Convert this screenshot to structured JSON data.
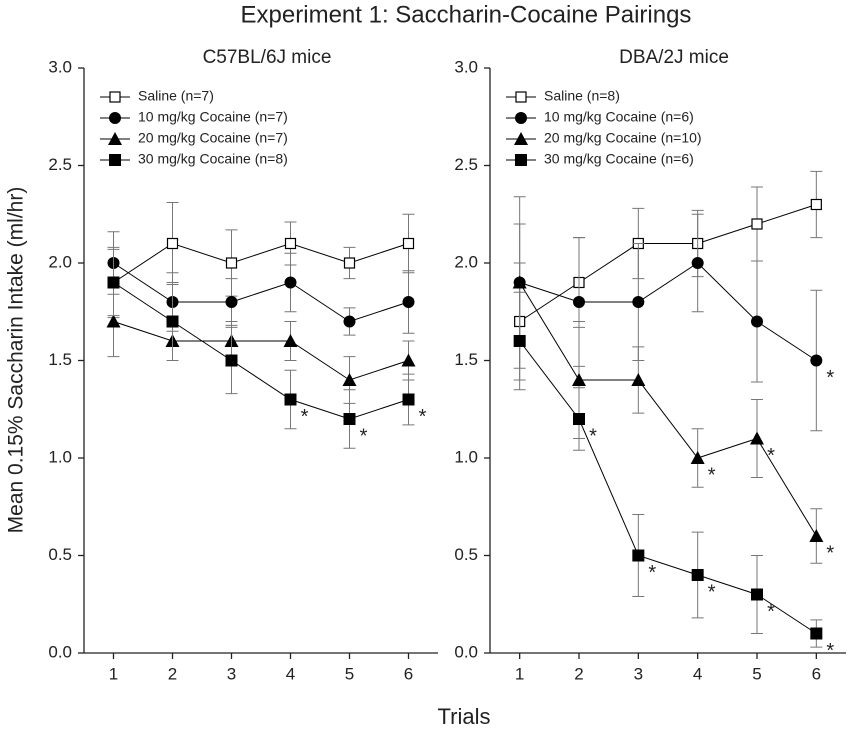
{
  "title": "Experiment 1: Saccharin-Cocaine Pairings",
  "xlabel": "Trials",
  "ylabel": "Mean 0.15% Saccharin Intake (ml/hr)",
  "chart_data": [
    {
      "type": "line",
      "title": "C57BL/6J mice",
      "x": [
        1,
        2,
        3,
        4,
        5,
        6
      ],
      "xlim": [
        0.5,
        6.5
      ],
      "xticks": [
        1,
        2,
        3,
        4,
        5,
        6
      ],
      "ylim": [
        0,
        3
      ],
      "yticks": [
        {
          "value": 0,
          "label": "0.0"
        },
        0.5,
        {
          "value": 1,
          "label": "1.0"
        },
        1.5,
        {
          "value": 2,
          "label": "2.0"
        },
        2.5,
        {
          "value": 3,
          "label": "3.0"
        }
      ],
      "legend": "upper left",
      "series": [
        {
          "name": "Saline (n=7)",
          "color": "#000000",
          "marker": "open-square",
          "values": [
            1.9,
            2.1,
            2.0,
            2.1,
            2.0,
            2.1
          ],
          "errors": [
            0.18,
            0.21,
            0.17,
            0.11,
            0.08,
            0.15
          ],
          "annotations": []
        },
        {
          "name": "10 mg/kg Cocaine (n=7)",
          "color": "#000000",
          "marker": "circle",
          "values": [
            2.0,
            1.8,
            1.8,
            1.9,
            1.7,
            1.8
          ],
          "errors": [
            0.16,
            0.15,
            0.12,
            0.15,
            0.07,
            0.16
          ],
          "annotations": []
        },
        {
          "name": "20 mg/kg Cocaine (n=7)",
          "color": "#000000",
          "marker": "triangle",
          "values": [
            1.7,
            1.6,
            1.6,
            1.6,
            1.4,
            1.5
          ],
          "errors": [
            0.18,
            0.1,
            0.1,
            0.1,
            0.12,
            0.1
          ],
          "annotations": []
        },
        {
          "name": "30 mg/kg Cocaine (n=8)",
          "color": "#000000",
          "marker": "square",
          "values": [
            1.9,
            1.7,
            1.5,
            1.3,
            1.2,
            1.3
          ],
          "errors": [
            0.17,
            0.2,
            0.17,
            0.15,
            0.15,
            0.13
          ],
          "annotations": [
            {
              "x": 4,
              "text": "*"
            },
            {
              "x": 5,
              "text": "*"
            },
            {
              "x": 6,
              "text": "*"
            }
          ]
        }
      ]
    },
    {
      "type": "line",
      "title": "DBA/2J mice",
      "x": [
        1,
        2,
        3,
        4,
        5,
        6
      ],
      "xlim": [
        0.5,
        6.5
      ],
      "xticks": [
        1,
        2,
        3,
        4,
        5,
        6
      ],
      "ylim": [
        0,
        3
      ],
      "yticks": [
        {
          "value": 0,
          "label": "0.0"
        },
        0.5,
        {
          "value": 1,
          "label": "1.0"
        },
        1.5,
        {
          "value": 2,
          "label": "2.0"
        },
        2.5,
        {
          "value": 3,
          "label": "3.0"
        }
      ],
      "legend": "upper left",
      "series": [
        {
          "name": "Saline (n=8)",
          "color": "#000000",
          "marker": "open-square",
          "values": [
            1.7,
            1.9,
            2.1,
            2.1,
            2.2,
            2.3
          ],
          "errors": [
            0.3,
            0.23,
            0.18,
            0.17,
            0.19,
            0.17
          ],
          "annotations": []
        },
        {
          "name": "10 mg/kg Cocaine (n=6)",
          "color": "#000000",
          "marker": "circle",
          "values": [
            1.9,
            1.8,
            1.8,
            2.0,
            1.7,
            1.5
          ],
          "errors": [
            0.44,
            0.33,
            0.3,
            0.25,
            0.31,
            0.36
          ],
          "annotations": [
            {
              "x": 6,
              "text": "*"
            }
          ]
        },
        {
          "name": "20 mg/kg Cocaine (n=10)",
          "color": "#000000",
          "marker": "triangle",
          "values": [
            1.9,
            1.4,
            1.4,
            1.0,
            1.1,
            0.6
          ],
          "errors": [
            0.3,
            0.3,
            0.17,
            0.15,
            0.2,
            0.14
          ],
          "annotations": [
            {
              "x": 4,
              "text": "*"
            },
            {
              "x": 5,
              "text": "*"
            },
            {
              "x": 6,
              "text": "*"
            }
          ]
        },
        {
          "name": "30 mg/kg Cocaine (n=6)",
          "color": "#000000",
          "marker": "square",
          "values": [
            1.6,
            1.2,
            0.5,
            0.4,
            0.3,
            0.1
          ],
          "errors": [
            0.25,
            0.16,
            0.21,
            0.22,
            0.2,
            0.07
          ],
          "annotations": [
            {
              "x": 2,
              "text": "*"
            },
            {
              "x": 3,
              "text": "*"
            },
            {
              "x": 4,
              "text": "*"
            },
            {
              "x": 5,
              "text": "*"
            },
            {
              "x": 6,
              "text": "*"
            }
          ]
        }
      ]
    }
  ]
}
